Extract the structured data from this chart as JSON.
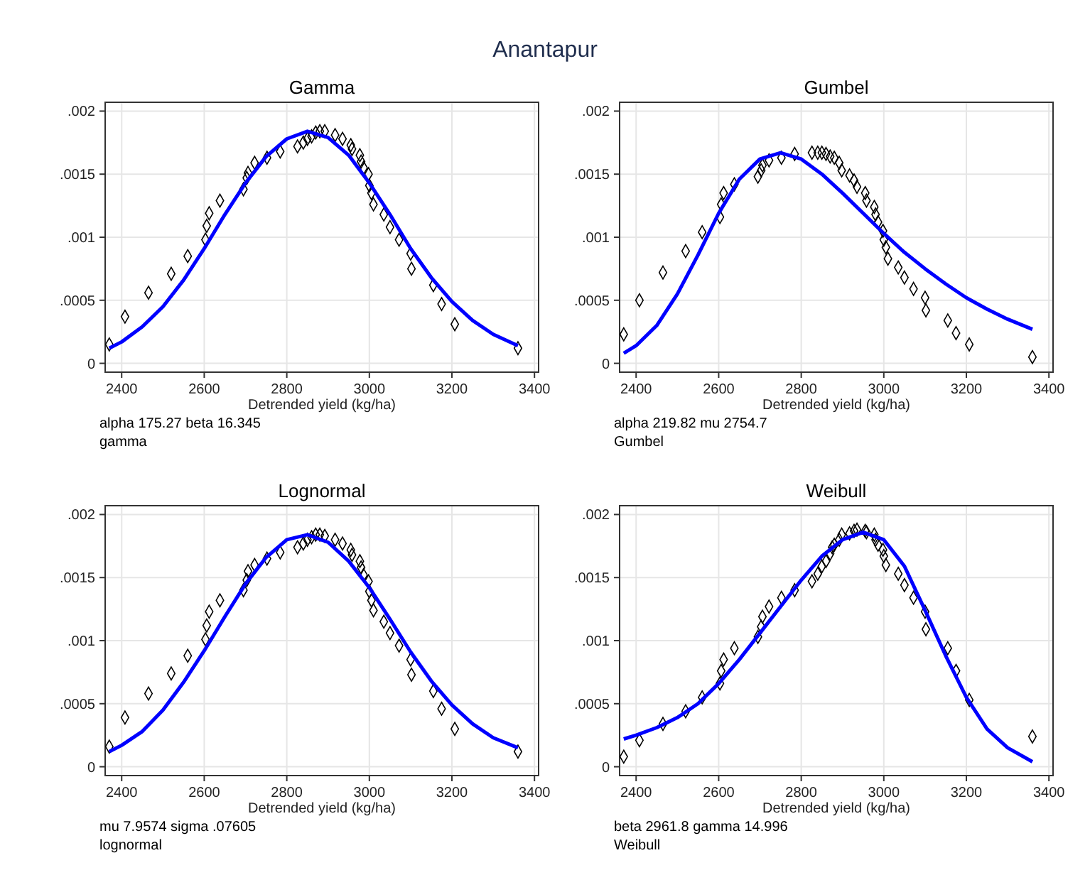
{
  "chart_data": [
    {
      "type": "other",
      "title": "Anantapur"
    },
    {
      "type": "scatter",
      "title": "Gamma",
      "xlabel": "Detrended yield (kg/ha)",
      "annotations": [
        "alpha 175.27 beta 16.345",
        "gamma"
      ],
      "xlim": [
        2360,
        3410
      ],
      "ylim": [
        -7e-05,
        0.00207
      ],
      "xticks": [
        2400,
        2600,
        2800,
        3000,
        3200,
        3400
      ],
      "yticks": [
        {
          "value": 0,
          "label": "0"
        },
        {
          "value": 0.0005,
          "label": ".0005"
        },
        {
          "value": 0.001,
          "label": ".001"
        },
        {
          "value": 0.0015,
          "label": ".0015"
        },
        {
          "value": 0.002,
          "label": ".002"
        }
      ],
      "grid": true,
      "series": [
        {
          "type": "scatter",
          "marker": "diamond",
          "color": "#000000",
          "x": [
            2370,
            2408,
            2465,
            2520,
            2560,
            2603,
            2606,
            2612,
            2638,
            2695,
            2703,
            2706,
            2722,
            2752,
            2784,
            2826,
            2840,
            2850,
            2860,
            2870,
            2880,
            2892,
            2917,
            2935,
            2955,
            2958,
            2977,
            2980,
            2986,
            2998,
            3000,
            3005,
            3010,
            3035,
            3050,
            3072,
            3100,
            3102,
            3155,
            3175,
            3207,
            3360
          ],
          "values": [
            0.00015,
            0.00037,
            0.00056,
            0.00071,
            0.00085,
            0.00098,
            0.00109,
            0.00119,
            0.00129,
            0.00138,
            0.00147,
            0.00151,
            0.00159,
            0.00163,
            0.00168,
            0.00172,
            0.00175,
            0.00178,
            0.0018,
            0.00183,
            0.00184,
            0.00184,
            0.00181,
            0.00178,
            0.00173,
            0.0017,
            0.00165,
            0.0016,
            0.00155,
            0.0015,
            0.00141,
            0.00135,
            0.00126,
            0.00118,
            0.00108,
            0.00098,
            0.00087,
            0.00075,
            0.00062,
            0.00047,
            0.00031,
            0.00012
          ]
        },
        {
          "type": "line",
          "color": "#0000ff",
          "x": [
            2370,
            2400,
            2450,
            2500,
            2550,
            2600,
            2650,
            2700,
            2750,
            2800,
            2850,
            2900,
            2950,
            3000,
            3050,
            3100,
            3150,
            3200,
            3250,
            3300,
            3360
          ],
          "values": [
            0.00012,
            0.00017,
            0.00029,
            0.00045,
            0.00066,
            0.00091,
            0.00118,
            0.00143,
            0.00164,
            0.00178,
            0.00184,
            0.00179,
            0.00165,
            0.00143,
            0.00118,
            0.00091,
            0.00068,
            0.00049,
            0.00034,
            0.00023,
            0.00014
          ]
        }
      ]
    },
    {
      "type": "scatter",
      "title": "Gumbel",
      "xlabel": "Detrended yield (kg/ha)",
      "annotations": [
        "alpha 219.82 mu 2754.7",
        "Gumbel"
      ],
      "xlim": [
        2360,
        3410
      ],
      "ylim": [
        -7e-05,
        0.00207
      ],
      "xticks": [
        2400,
        2600,
        2800,
        3000,
        3200,
        3400
      ],
      "yticks": [
        {
          "value": 0,
          "label": "0"
        },
        {
          "value": 0.0005,
          "label": ".0005"
        },
        {
          "value": 0.001,
          "label": ".001"
        },
        {
          "value": 0.0015,
          "label": ".0015"
        },
        {
          "value": 0.002,
          "label": ".002"
        }
      ],
      "grid": true,
      "series": [
        {
          "type": "scatter",
          "marker": "diamond",
          "color": "#000000",
          "x": [
            2370,
            2408,
            2465,
            2520,
            2560,
            2603,
            2606,
            2612,
            2638,
            2695,
            2703,
            2706,
            2722,
            2752,
            2784,
            2826,
            2840,
            2850,
            2860,
            2870,
            2880,
            2892,
            2898,
            2917,
            2928,
            2935,
            2955,
            2958,
            2977,
            2980,
            2986,
            2998,
            3000,
            3005,
            3010,
            3035,
            3050,
            3072,
            3100,
            3102,
            3155,
            3175,
            3207,
            3360
          ],
          "values": [
            0.00023,
            0.0005,
            0.00072,
            0.00089,
            0.00104,
            0.00116,
            0.00126,
            0.00135,
            0.00142,
            0.00148,
            0.00153,
            0.00157,
            0.00161,
            0.00163,
            0.00166,
            0.00167,
            0.00167,
            0.00167,
            0.00166,
            0.00164,
            0.00163,
            0.00159,
            0.00153,
            0.00149,
            0.00145,
            0.0014,
            0.00135,
            0.00129,
            0.00124,
            0.00118,
            0.00112,
            0.00105,
            0.00098,
            0.00092,
            0.00083,
            0.00076,
            0.00068,
            0.00059,
            0.00052,
            0.00042,
            0.00034,
            0.00024,
            0.00015,
            5e-05
          ]
        },
        {
          "type": "line",
          "color": "#0000ff",
          "x": [
            2370,
            2400,
            2450,
            2500,
            2550,
            2600,
            2650,
            2700,
            2750,
            2800,
            2850,
            2900,
            2950,
            3000,
            3050,
            3100,
            3150,
            3200,
            3250,
            3300,
            3360
          ],
          "values": [
            8e-05,
            0.00014,
            0.0003,
            0.00055,
            0.00086,
            0.00119,
            0.00146,
            0.00162,
            0.00167,
            0.00162,
            0.0015,
            0.00135,
            0.00119,
            0.00103,
            0.00088,
            0.00075,
            0.00063,
            0.00052,
            0.00043,
            0.00035,
            0.00027
          ]
        }
      ]
    },
    {
      "type": "scatter",
      "title": "Lognormal",
      "xlabel": "Detrended yield (kg/ha)",
      "annotations": [
        "mu 7.9574 sigma .07605",
        "lognormal"
      ],
      "xlim": [
        2360,
        3410
      ],
      "ylim": [
        -7e-05,
        0.00207
      ],
      "xticks": [
        2400,
        2600,
        2800,
        3000,
        3200,
        3400
      ],
      "yticks": [
        {
          "value": 0,
          "label": "0"
        },
        {
          "value": 0.0005,
          "label": ".0005"
        },
        {
          "value": 0.001,
          "label": ".001"
        },
        {
          "value": 0.0015,
          "label": ".0015"
        },
        {
          "value": 0.002,
          "label": ".002"
        }
      ],
      "grid": true,
      "series": [
        {
          "type": "scatter",
          "marker": "diamond",
          "color": "#000000",
          "x": [
            2370,
            2408,
            2465,
            2520,
            2560,
            2603,
            2606,
            2612,
            2638,
            2695,
            2703,
            2706,
            2722,
            2752,
            2784,
            2826,
            2840,
            2850,
            2860,
            2870,
            2880,
            2892,
            2917,
            2935,
            2955,
            2958,
            2977,
            2980,
            2986,
            2998,
            3000,
            3005,
            3010,
            3035,
            3050,
            3072,
            3100,
            3102,
            3155,
            3175,
            3207,
            3360
          ],
          "values": [
            0.00016,
            0.00039,
            0.00058,
            0.00074,
            0.00088,
            0.00101,
            0.00112,
            0.00123,
            0.00132,
            0.0014,
            0.00148,
            0.00155,
            0.0016,
            0.00165,
            0.0017,
            0.00174,
            0.00177,
            0.0018,
            0.00182,
            0.00184,
            0.00184,
            0.00183,
            0.0018,
            0.00177,
            0.00172,
            0.00168,
            0.00163,
            0.00158,
            0.00152,
            0.00147,
            0.00139,
            0.00132,
            0.00124,
            0.00115,
            0.00106,
            0.00096,
            0.00085,
            0.00073,
            0.0006,
            0.00046,
            0.0003,
            0.00012
          ]
        },
        {
          "type": "line",
          "color": "#0000ff",
          "x": [
            2370,
            2400,
            2450,
            2500,
            2550,
            2600,
            2650,
            2700,
            2750,
            2800,
            2850,
            2900,
            2950,
            3000,
            3050,
            3100,
            3150,
            3200,
            3250,
            3300,
            3360
          ],
          "values": [
            0.00012,
            0.00017,
            0.00028,
            0.00045,
            0.00067,
            0.00092,
            0.00119,
            0.00145,
            0.00166,
            0.0018,
            0.00184,
            0.00178,
            0.00163,
            0.00142,
            0.00117,
            0.00091,
            0.00068,
            0.00049,
            0.00034,
            0.00023,
            0.00015
          ]
        }
      ]
    },
    {
      "type": "scatter",
      "title": "Weibull",
      "xlabel": "Detrended yield (kg/ha)",
      "annotations": [
        "beta 2961.8 gamma 14.996",
        "Weibull"
      ],
      "xlim": [
        2360,
        3410
      ],
      "ylim": [
        -7e-05,
        0.00207
      ],
      "xticks": [
        2400,
        2600,
        2800,
        3000,
        3200,
        3400
      ],
      "yticks": [
        {
          "value": 0,
          "label": "0"
        },
        {
          "value": 0.0005,
          "label": ".0005"
        },
        {
          "value": 0.001,
          "label": ".001"
        },
        {
          "value": 0.0015,
          "label": ".0015"
        },
        {
          "value": 0.002,
          "label": ".002"
        }
      ],
      "grid": true,
      "series": [
        {
          "type": "scatter",
          "marker": "diamond",
          "color": "#000000",
          "x": [
            2370,
            2408,
            2465,
            2520,
            2560,
            2603,
            2606,
            2612,
            2638,
            2695,
            2703,
            2706,
            2722,
            2752,
            2784,
            2826,
            2840,
            2850,
            2860,
            2870,
            2875,
            2880,
            2892,
            2898,
            2917,
            2928,
            2935,
            2955,
            2958,
            2977,
            2980,
            2986,
            2998,
            3000,
            3005,
            3035,
            3050,
            3072,
            3100,
            3102,
            3155,
            3175,
            3207,
            3360
          ],
          "values": [
            8e-05,
            0.00021,
            0.00034,
            0.00044,
            0.00055,
            0.00066,
            0.00076,
            0.00085,
            0.00094,
            0.00103,
            0.00111,
            0.00119,
            0.00127,
            0.00134,
            0.0014,
            0.00147,
            0.00153,
            0.00159,
            0.00163,
            0.00169,
            0.00174,
            0.00176,
            0.0018,
            0.00184,
            0.00185,
            0.00187,
            0.00188,
            0.00187,
            0.00186,
            0.00184,
            0.0018,
            0.00176,
            0.00172,
            0.00167,
            0.0016,
            0.00153,
            0.00144,
            0.00134,
            0.00123,
            0.00109,
            0.00094,
            0.00076,
            0.00053,
            0.00024
          ]
        },
        {
          "type": "line",
          "color": "#0000ff",
          "x": [
            2370,
            2400,
            2450,
            2500,
            2550,
            2600,
            2650,
            2700,
            2750,
            2800,
            2850,
            2900,
            2950,
            3000,
            3050,
            3100,
            3150,
            3200,
            3250,
            3300,
            3360
          ],
          "values": [
            0.00022,
            0.00025,
            0.00031,
            0.00039,
            0.0005,
            0.00066,
            0.00085,
            0.00106,
            0.00127,
            0.00148,
            0.00167,
            0.0018,
            0.00186,
            0.0018,
            0.00159,
            0.00124,
            0.00088,
            0.00055,
            0.0003,
            0.00015,
            4e-05
          ]
        }
      ]
    }
  ]
}
